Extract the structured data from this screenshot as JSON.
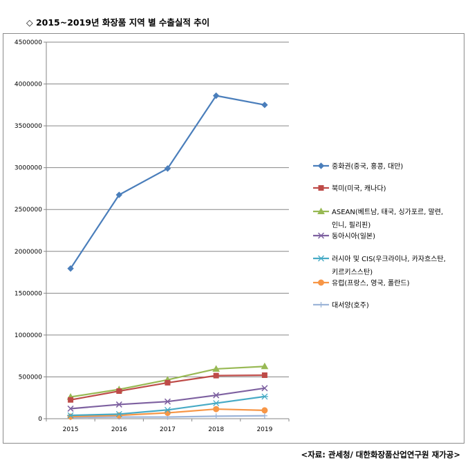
{
  "title": "◇ 2015~2019년 화장품 지역 별 수출실적 추이",
  "source": "<자료: 관세청/ 대한화장품산업연구원 재가공>",
  "chart_data": {
    "type": "line",
    "x": [
      "2015",
      "2016",
      "2017",
      "2018",
      "2019"
    ],
    "ylim": [
      0,
      4500000
    ],
    "yticks": [
      0,
      500000,
      1000000,
      1500000,
      2000000,
      2500000,
      3000000,
      3500000,
      4000000,
      4500000
    ],
    "ytick_labels": [
      "0",
      "500000",
      "1000000",
      "1500000",
      "2000000",
      "2500000",
      "3000000",
      "3500000",
      "4000000",
      "4500000"
    ],
    "grid": true,
    "legend_position": "right",
    "series": [
      {
        "name": "중화권(중국, 홍콩, 대만)",
        "name_lines": [
          "중화권(중국, 홍콩, 대만)"
        ],
        "color": "#4a7ebb",
        "marker": "diamond",
        "values": [
          1795000,
          2675000,
          2990000,
          3860000,
          3750000
        ]
      },
      {
        "name": "북미(미국, 캐나다)",
        "name_lines": [
          "북미(미국, 캐나다)"
        ],
        "color": "#be4b48",
        "marker": "square",
        "values": [
          225000,
          330000,
          430000,
          515000,
          520000
        ]
      },
      {
        "name": "ASEAN(베트남, 태국, 싱가포르, 말련, 인니, 필리핀)",
        "name_lines": [
          "ASEAN(베트남, 태국, 싱가포르, 말련,",
          "인니, 필리핀)"
        ],
        "color": "#98b954",
        "marker": "triangle",
        "values": [
          260000,
          350000,
          465000,
          595000,
          625000
        ]
      },
      {
        "name": "동아시아(일본)",
        "name_lines": [
          "동아시아(일본)"
        ],
        "color": "#7d60a0",
        "marker": "x",
        "values": [
          120000,
          170000,
          205000,
          280000,
          365000
        ]
      },
      {
        "name": "러시아 및 CIS(우크라이나, 카자흐스탄, 키르키스스탄)",
        "name_lines": [
          "러시아 및 CIS(우크라이나, 카자흐스탄,",
          "키르키스스탄)"
        ],
        "color": "#46aac5",
        "marker": "star",
        "values": [
          40000,
          55000,
          105000,
          185000,
          265000
        ]
      },
      {
        "name": "유럽(프랑스, 영국, 폴란드)",
        "name_lines": [
          "유럽(프랑스, 영국, 폴란드)"
        ],
        "color": "#f79646",
        "marker": "circle",
        "values": [
          25000,
          40000,
          70000,
          115000,
          100000
        ]
      },
      {
        "name": "대서양(호주)",
        "name_lines": [
          "대서양(호주)"
        ],
        "color": "#9cb4d8",
        "marker": "plus",
        "values": [
          15000,
          20000,
          20000,
          30000,
          35000
        ]
      }
    ]
  }
}
